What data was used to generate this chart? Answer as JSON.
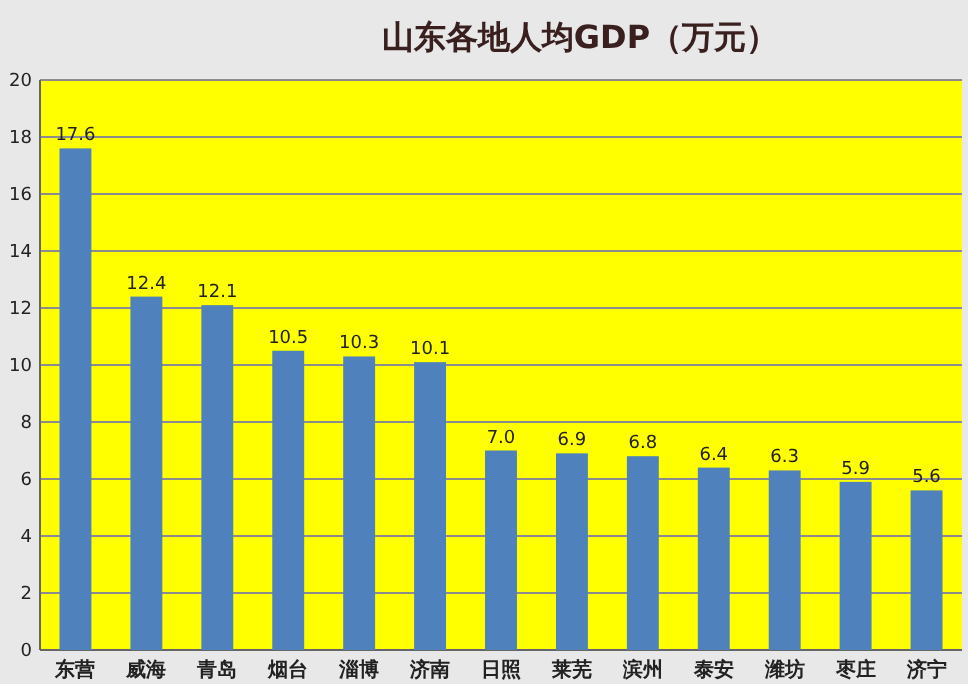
{
  "chart_data": {
    "type": "bar",
    "title": "山东各地人均GDP（万元）",
    "categories": [
      "东营",
      "威海",
      "青岛",
      "烟台",
      "淄博",
      "济南",
      "日照",
      "莱芜",
      "滨州",
      "泰安",
      "潍坊",
      "枣庄",
      "济宁"
    ],
    "values": [
      17.6,
      12.4,
      12.1,
      10.5,
      10.3,
      10.1,
      7.0,
      6.9,
      6.8,
      6.4,
      6.3,
      5.9,
      5.6
    ],
    "value_labels": [
      "17.6",
      "12.4",
      "12.1",
      "10.5",
      "10.3",
      "10.1",
      "7.0",
      "6.9",
      "6.8",
      "6.4",
      "6.3",
      "5.9",
      "5.6"
    ],
    "color": "#4f81bd",
    "ylim": [
      0,
      20
    ],
    "yticks": [
      0,
      2,
      4,
      6,
      8,
      10,
      12,
      14,
      16,
      18,
      20
    ],
    "grid": "y"
  }
}
